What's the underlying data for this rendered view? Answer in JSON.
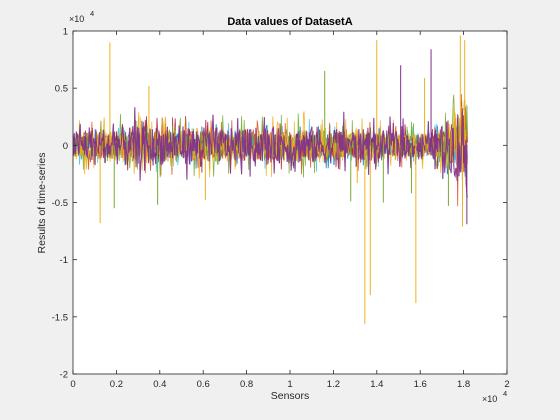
{
  "chart_data": {
    "type": "line",
    "title": "Data values of DatasetA",
    "xlabel": "Sensors",
    "ylabel": "Results of time-series",
    "x_exponent_base": "×10",
    "x_exponent_power": "4",
    "y_exponent_base": "×10",
    "y_exponent_power": "4",
    "xlim": [
      0,
      20000
    ],
    "ylim": [
      -20000,
      10000
    ],
    "x_tick_values": [
      0,
      2000,
      4000,
      6000,
      8000,
      10000,
      12000,
      14000,
      16000,
      18000,
      20000
    ],
    "x_tick_labels": [
      "0",
      "0.2",
      "0.4",
      "0.6",
      "0.8",
      "1",
      "1.2",
      "1.4",
      "1.6",
      "1.8",
      "2"
    ],
    "y_tick_values": [
      -20000,
      -15000,
      -10000,
      -5000,
      0,
      5000,
      10000
    ],
    "y_tick_labels": [
      "-2",
      "-1.5",
      "-1",
      "-0.5",
      "0",
      "0.5",
      "1"
    ],
    "grid": false,
    "legend": "none",
    "series_colors": [
      "#0072bd",
      "#d95319",
      "#edb120",
      "#7e2f8e",
      "#77ac30",
      "#4dbeee",
      "#a2142f"
    ],
    "x_data_range": [
      0,
      18200
    ],
    "noise_envelope": [
      {
        "x": 0,
        "amplitude": 1500
      },
      {
        "x": 2000,
        "amplitude": 2000
      },
      {
        "x": 5000,
        "amplitude": 2000
      },
      {
        "x": 8000,
        "amplitude": 1700
      },
      {
        "x": 11000,
        "amplitude": 2000
      },
      {
        "x": 14000,
        "amplitude": 1600
      },
      {
        "x": 16500,
        "amplitude": 1300
      },
      {
        "x": 17500,
        "amplitude": 3000
      },
      {
        "x": 18200,
        "amplitude": 6000
      }
    ],
    "spikes": [
      {
        "x": 1250,
        "y": -6800,
        "series": 2
      },
      {
        "x": 1700,
        "y": 9000,
        "series": 2
      },
      {
        "x": 1900,
        "y": -5500,
        "series": 4
      },
      {
        "x": 3500,
        "y": 5200,
        "series": 2
      },
      {
        "x": 3900,
        "y": -5200,
        "series": 4
      },
      {
        "x": 6100,
        "y": -4800,
        "series": 2
      },
      {
        "x": 11600,
        "y": 6500,
        "series": 4
      },
      {
        "x": 12800,
        "y": -4900,
        "series": 4
      },
      {
        "x": 13100,
        "y": -3300,
        "series": 2
      },
      {
        "x": 13450,
        "y": -15600,
        "series": 2
      },
      {
        "x": 13700,
        "y": -13100,
        "series": 2
      },
      {
        "x": 14000,
        "y": 9200,
        "series": 2
      },
      {
        "x": 14300,
        "y": -5000,
        "series": 4
      },
      {
        "x": 15100,
        "y": 7000,
        "series": 3
      },
      {
        "x": 15600,
        "y": -4200,
        "series": 4
      },
      {
        "x": 15800,
        "y": -13800,
        "series": 2
      },
      {
        "x": 16200,
        "y": 5900,
        "series": 2
      },
      {
        "x": 16500,
        "y": 8400,
        "series": 3
      },
      {
        "x": 17300,
        "y": -5300,
        "series": 4
      },
      {
        "x": 17850,
        "y": 9600,
        "series": 2
      },
      {
        "x": 17950,
        "y": -7100,
        "series": 2
      },
      {
        "x": 18050,
        "y": 9200,
        "series": 2
      },
      {
        "x": 18150,
        "y": -6900,
        "series": 3
      }
    ]
  }
}
